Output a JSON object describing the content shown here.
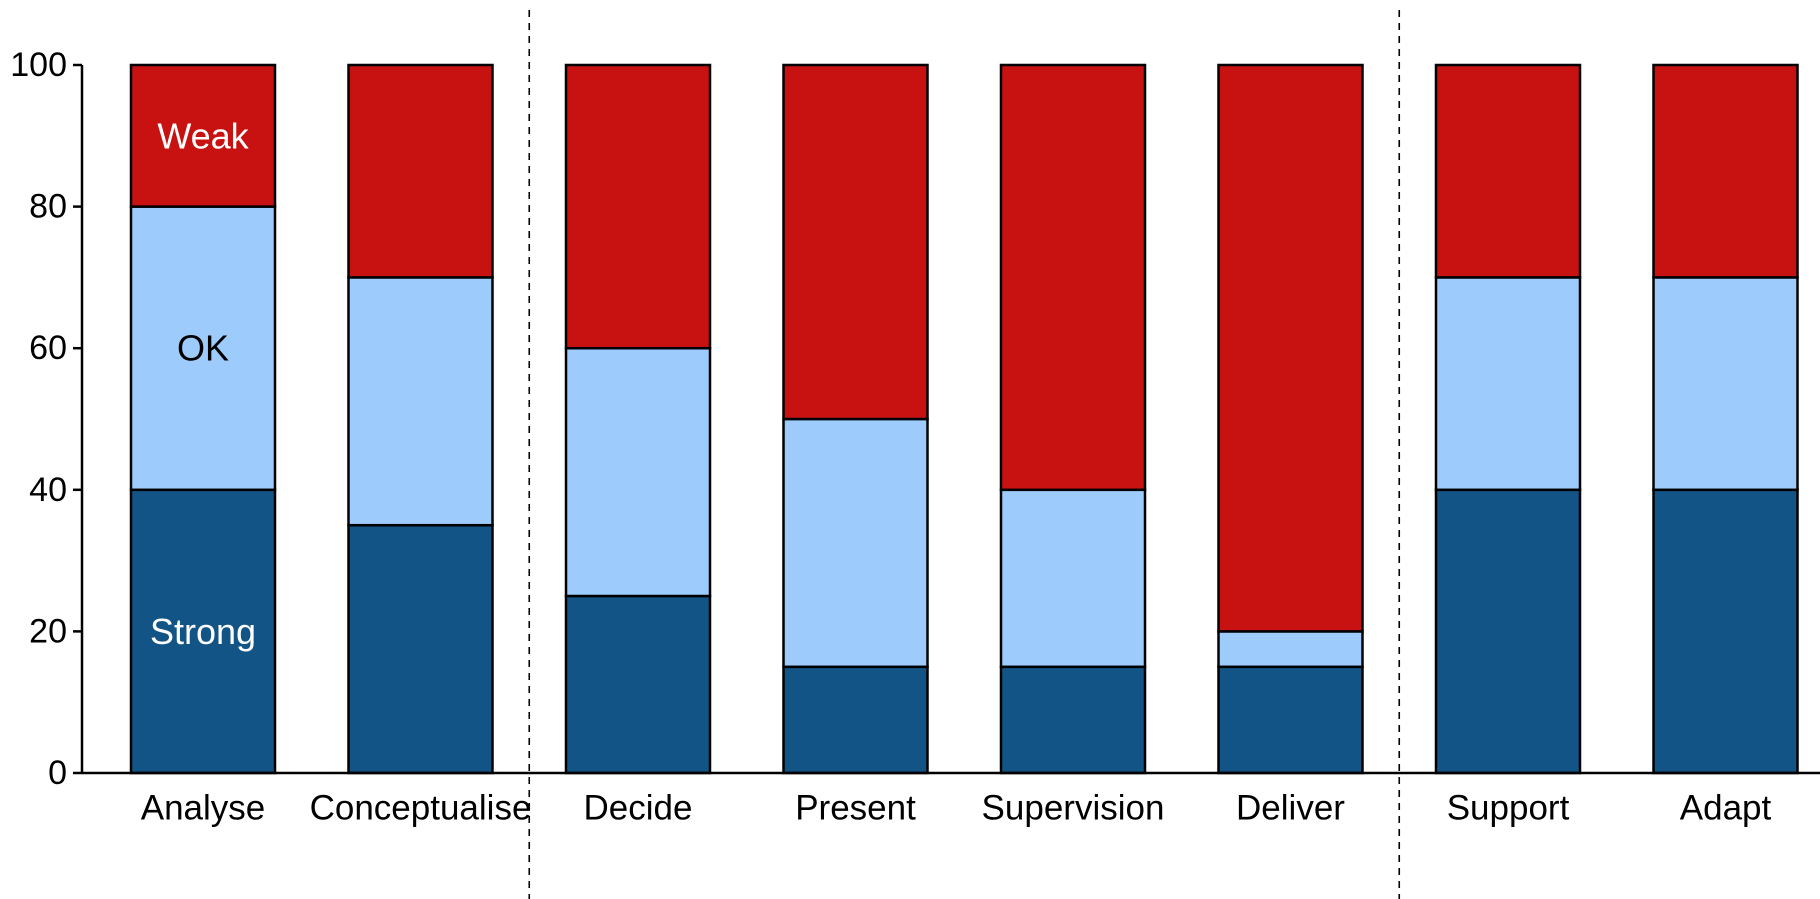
{
  "chart_data": {
    "type": "bar",
    "stacked": true,
    "categories": [
      "Analyse",
      "Conceptualise",
      "Decide",
      "Present",
      "Supervision",
      "Deliver",
      "Support",
      "Adapt"
    ],
    "series": [
      {
        "name": "Strong",
        "color": "#135486",
        "values": [
          40,
          35,
          25,
          15,
          15,
          15,
          40,
          40
        ]
      },
      {
        "name": "OK",
        "color": "#9ccbfc",
        "values": [
          40,
          35,
          35,
          35,
          25,
          5,
          30,
          30
        ]
      },
      {
        "name": "Weak",
        "color": "#c81212",
        "values": [
          20,
          30,
          40,
          50,
          60,
          80,
          30,
          30
        ]
      }
    ],
    "ylim": [
      0,
      100
    ],
    "yticks": [
      0,
      20,
      40,
      60,
      80,
      100
    ],
    "y_tick_labels": [
      "0",
      "20",
      "40",
      "60",
      "80",
      "100"
    ],
    "group_separators_after": [
      "Conceptualise",
      "Deliver"
    ],
    "series_labels_shown_on": "Analyse",
    "grid": false,
    "legend": "none"
  }
}
